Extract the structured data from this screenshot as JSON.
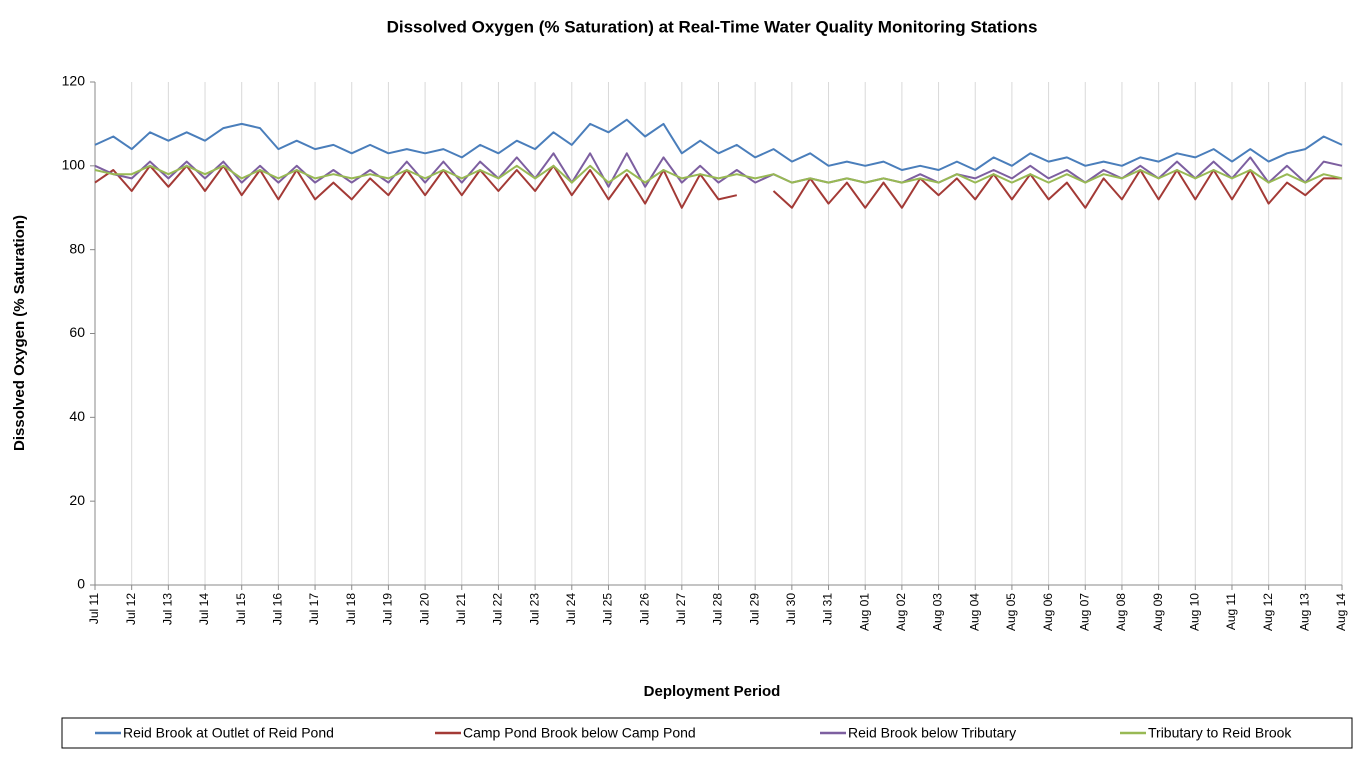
{
  "chart_data": {
    "type": "line",
    "title": "Dissolved Oxygen (% Saturation) at Real-Time Water Quality Monitoring Stations",
    "x_label": "Deployment Period",
    "y_label": "Dissolved  Oxygen (% Saturation)",
    "categories": [
      "Jul 11",
      null,
      "Jul 12",
      null,
      "Jul 13",
      null,
      "Jul 14",
      null,
      "Jul 15",
      null,
      "Jul 16",
      null,
      "Jul 17",
      null,
      "Jul 18",
      null,
      "Jul 19",
      null,
      "Jul 20",
      null,
      "Jul 21",
      null,
      "Jul 22",
      null,
      "Jul 23",
      null,
      "Jul 24",
      null,
      "Jul 25",
      null,
      "Jul 26",
      null,
      "Jul 27",
      null,
      "Jul 28",
      null,
      "Jul 29",
      null,
      "Jul 30",
      null,
      "Jul 31",
      null,
      "Aug 01",
      null,
      "Aug 02",
      null,
      "Aug 03",
      null,
      "Aug 04",
      null,
      "Aug 05",
      null,
      "Aug 06",
      null,
      "Aug 07",
      null,
      "Aug 08",
      null,
      "Aug 09",
      null,
      "Aug 10",
      null,
      "Aug 11",
      null,
      "Aug 12",
      null,
      "Aug 13",
      null,
      "Aug 14"
    ],
    "ylim": [
      0,
      120
    ],
    "yticks": [
      0,
      20,
      40,
      60,
      80,
      100,
      120
    ],
    "grid": "x",
    "legend": "bottom",
    "series": [
      {
        "name": "Reid Brook at Outlet of Reid Pond",
        "color": "#4a7ebb",
        "values": [
          105,
          107,
          104,
          108,
          106,
          108,
          106,
          109,
          110,
          109,
          104,
          106,
          104,
          105,
          103,
          105,
          103,
          104,
          103,
          104,
          102,
          105,
          103,
          106,
          104,
          108,
          105,
          110,
          108,
          111,
          107,
          110,
          103,
          106,
          103,
          105,
          102,
          104,
          101,
          103,
          100,
          101,
          100,
          101,
          99,
          100,
          99,
          101,
          99,
          102,
          100,
          103,
          101,
          102,
          100,
          101,
          100,
          102,
          101,
          103,
          102,
          104,
          101,
          104,
          101,
          103,
          104,
          107,
          105
        ]
      },
      {
        "name": "Camp Pond Brook below Camp Pond",
        "color": "#a33a36",
        "values": [
          96,
          99,
          94,
          100,
          95,
          100,
          94,
          100,
          93,
          99,
          92,
          99,
          92,
          96,
          92,
          97,
          93,
          99,
          93,
          99,
          93,
          99,
          94,
          99,
          94,
          100,
          93,
          99,
          92,
          98,
          91,
          99,
          90,
          98,
          92,
          93,
          null,
          94,
          90,
          97,
          91,
          96,
          90,
          96,
          90,
          97,
          93,
          97,
          92,
          98,
          92,
          98,
          92,
          96,
          90,
          97,
          92,
          99,
          92,
          99,
          92,
          99,
          92,
          99,
          91,
          96,
          93,
          97,
          97
        ]
      },
      {
        "name": "Reid Brook below Tributary",
        "color": "#7d5fa0",
        "values": [
          100,
          98,
          97,
          101,
          97,
          101,
          97,
          101,
          96,
          100,
          96,
          100,
          96,
          99,
          96,
          99,
          96,
          101,
          96,
          101,
          96,
          101,
          97,
          102,
          97,
          103,
          96,
          103,
          95,
          103,
          95,
          102,
          96,
          100,
          96,
          99,
          96,
          98,
          96,
          97,
          96,
          97,
          96,
          97,
          96,
          98,
          96,
          98,
          97,
          99,
          97,
          100,
          97,
          99,
          96,
          99,
          97,
          100,
          97,
          101,
          97,
          101,
          97,
          102,
          96,
          100,
          96,
          101,
          100
        ]
      },
      {
        "name": "Tributary to Reid Brook",
        "color": "#98b954",
        "values": [
          99,
          98,
          98,
          100,
          98,
          100,
          98,
          100,
          97,
          99,
          97,
          99,
          97,
          98,
          97,
          98,
          97,
          99,
          97,
          99,
          97,
          99,
          97,
          100,
          97,
          100,
          96,
          100,
          96,
          99,
          96,
          99,
          97,
          98,
          97,
          98,
          97,
          98,
          96,
          97,
          96,
          97,
          96,
          97,
          96,
          97,
          96,
          98,
          96,
          98,
          96,
          98,
          96,
          98,
          96,
          98,
          97,
          99,
          97,
          99,
          97,
          99,
          97,
          99,
          96,
          98,
          96,
          98,
          97
        ]
      }
    ]
  }
}
